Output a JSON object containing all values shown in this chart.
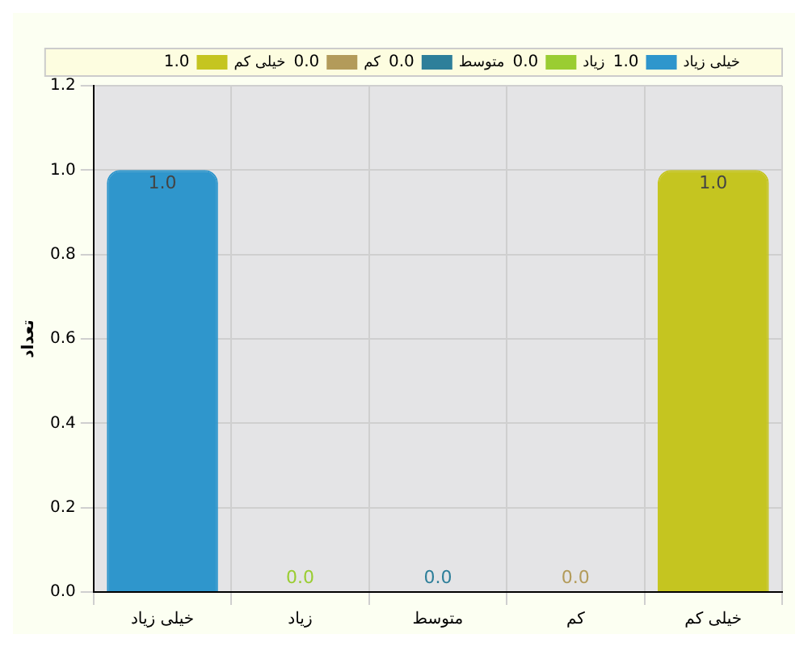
{
  "chart_data": {
    "type": "bar",
    "ylabel": "تعداد",
    "categories": [
      "خیلی زیاد",
      "زیاد",
      "متوسط",
      "کم",
      "خیلی کم"
    ],
    "stacked": true,
    "series": [
      {
        "name": "خیلی زیاد",
        "color": "#2f96cc",
        "values": [
          1,
          null,
          null,
          null,
          null
        ],
        "value_labels": [
          "1.0",
          null,
          null,
          null,
          null
        ]
      },
      {
        "name": "زیاد",
        "color": "#9acd32",
        "values": [
          null,
          0,
          null,
          null,
          null
        ],
        "value_labels": [
          null,
          "0.0",
          null,
          null,
          null
        ]
      },
      {
        "name": "متوسط",
        "color": "#2e7f9a",
        "values": [
          null,
          null,
          0,
          null,
          null
        ],
        "value_labels": [
          null,
          null,
          "0.0",
          null,
          null
        ]
      },
      {
        "name": "کم",
        "color": "#b39b5a",
        "values": [
          null,
          null,
          null,
          0,
          null
        ],
        "value_labels": [
          null,
          null,
          null,
          "0.0",
          null
        ]
      },
      {
        "name": "خیلی کم",
        "color": "#c5c520",
        "values": [
          null,
          null,
          null,
          null,
          1
        ],
        "value_labels": [
          null,
          null,
          null,
          null,
          "1.0"
        ]
      }
    ],
    "ylim": [
      0,
      1.2
    ],
    "yticks": [
      {
        "value": 0,
        "label": "0.0"
      },
      {
        "value": 0.2,
        "label": "0.2"
      },
      {
        "value": 0.4,
        "label": "0.4"
      },
      {
        "value": 0.6,
        "label": "0.6"
      },
      {
        "value": 0.8,
        "label": "0.8"
      },
      {
        "value": 1,
        "label": "1.0"
      },
      {
        "value": 1.2,
        "label": "1.2"
      }
    ],
    "grid": true,
    "legend": "top right"
  }
}
